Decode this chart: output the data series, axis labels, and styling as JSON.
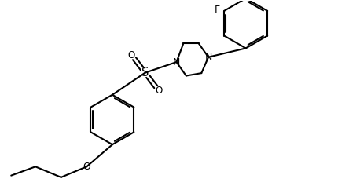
{
  "background_color": "#ffffff",
  "line_color": "#000000",
  "line_width": 1.5,
  "font_size": 8.5,
  "fig_width": 4.58,
  "fig_height": 2.37,
  "dpi": 100,
  "xlim": [
    0,
    10
  ],
  "ylim": [
    0,
    5.2
  ]
}
